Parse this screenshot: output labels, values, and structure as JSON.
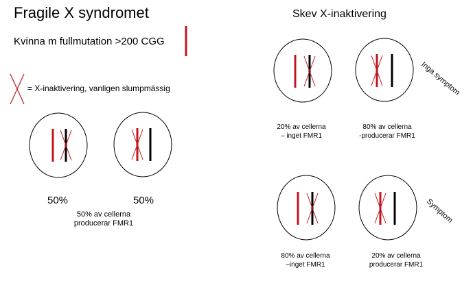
{
  "title": "Fragile X syndromet",
  "subtitle": "Kvinna m fullmutation >200 CGG",
  "legend": "= X-inaktivering,  vanligen slumpmässig",
  "left_cells": {
    "pct_left": "50%",
    "pct_right": "50%",
    "caption_line1": "50% av cellerna",
    "caption_line2": "producerar FMR1"
  },
  "right_title": "Skev X-inaktivering",
  "top_row": {
    "cell1_line1": "20% av cellerna",
    "cell1_line2": "– inget FMR1",
    "cell2_line1": "80% av cellerna",
    "cell2_line2": "-producerar FMR1",
    "side_label": "Inga symptom"
  },
  "bottom_row": {
    "cell1_line1": "80% av cellerna",
    "cell1_line2": "–inget FMR1",
    "cell2_line1": "20% av cellerna",
    "cell2_line2": "producerar FMR1",
    "side_label": "Symptom"
  },
  "colors": {
    "mutant_chromosome": "#c0161e",
    "normal_chromosome": "#000000",
    "inactivation_cross": "#c0161e"
  }
}
